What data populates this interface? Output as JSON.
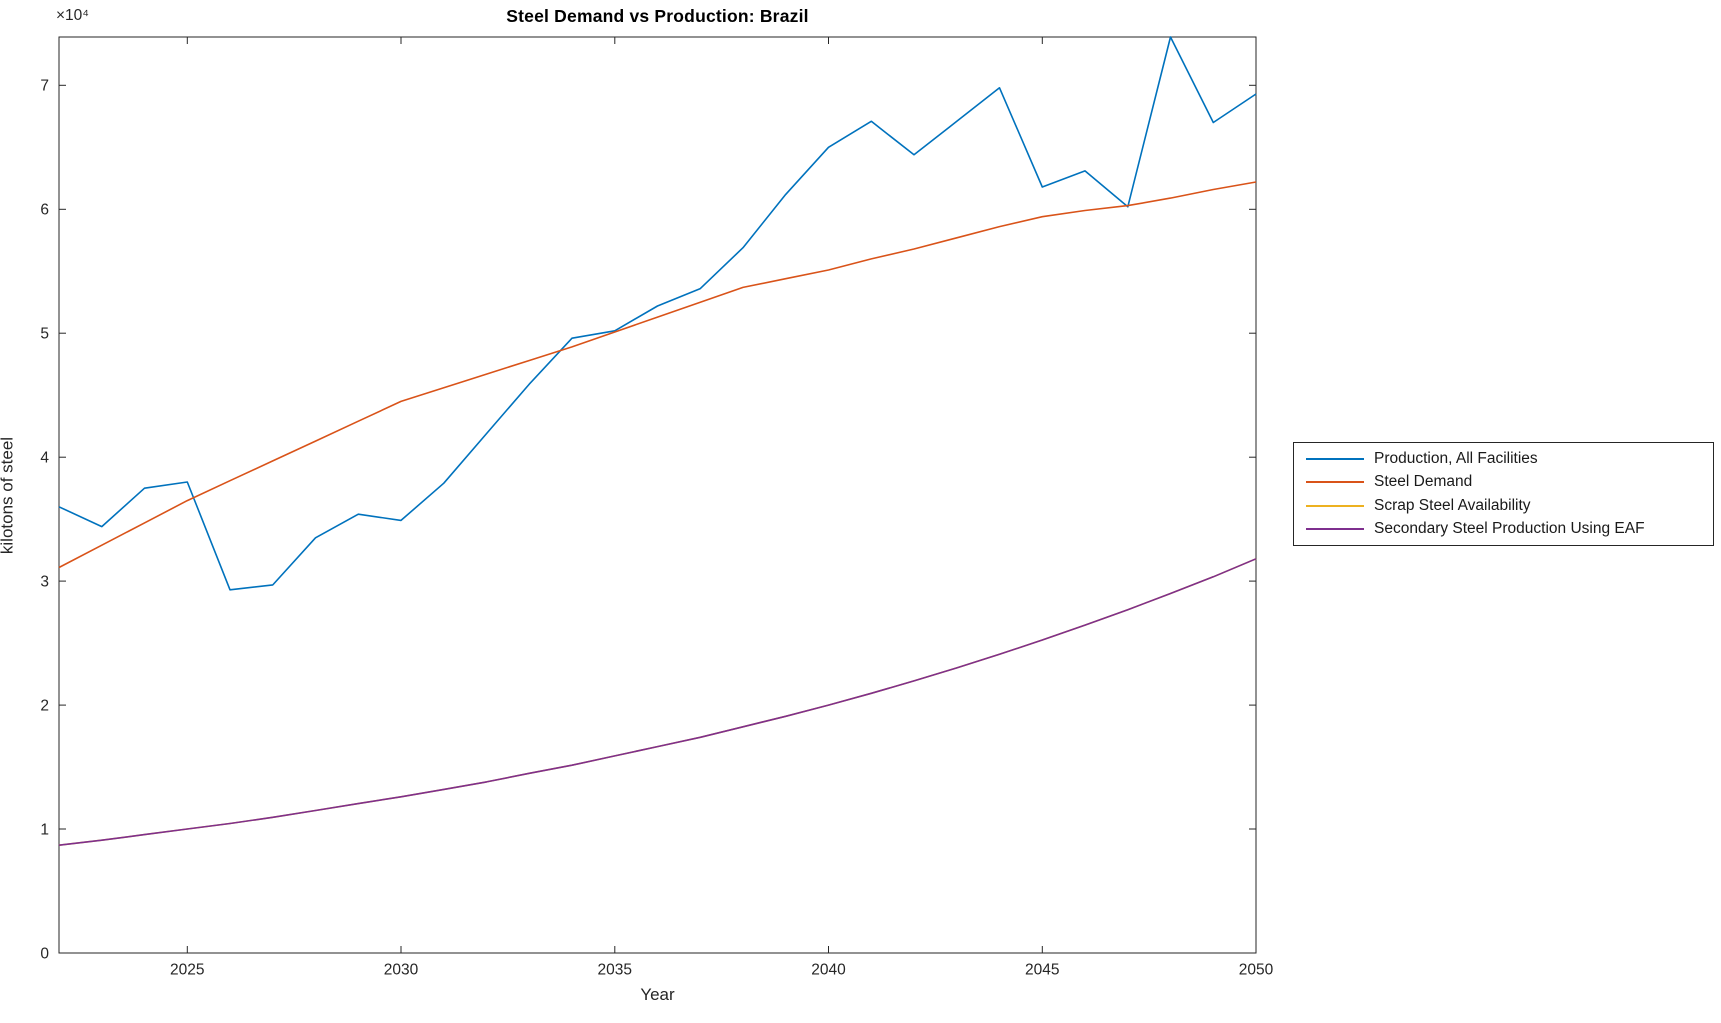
{
  "chart_data": {
    "type": "line",
    "title": "Steel Demand vs Production: Brazil",
    "xlabel": "Year",
    "ylabel": "kilotons of steel",
    "y_axis_multiplier": "×10⁴",
    "xlim": [
      2022,
      2050
    ],
    "ylim": [
      0,
      73900
    ],
    "xticks": [
      2025,
      2030,
      2035,
      2040,
      2045,
      2050
    ],
    "xtick_labels": [
      "2025",
      "2030",
      "2035",
      "2040",
      "2045",
      "2050"
    ],
    "yticks": [
      0,
      10000,
      20000,
      30000,
      40000,
      50000,
      60000,
      70000
    ],
    "ytick_labels": [
      "0",
      "1",
      "2",
      "3",
      "4",
      "5",
      "6",
      "7"
    ],
    "grid": false,
    "axis_color": "#262626",
    "background_color": "#ffffff",
    "legend_position": "right-outside",
    "x": [
      2022,
      2023,
      2024,
      2025,
      2026,
      2027,
      2028,
      2029,
      2030,
      2031,
      2032,
      2033,
      2034,
      2035,
      2036,
      2037,
      2038,
      2039,
      2040,
      2041,
      2042,
      2043,
      2044,
      2045,
      2046,
      2047,
      2048,
      2049,
      2050
    ],
    "series": [
      {
        "name": "Production, All Facilities",
        "color": "#0072BD",
        "values": [
          36000,
          34400,
          37500,
          38000,
          29300,
          29700,
          33500,
          35400,
          34900,
          37900,
          41900,
          45900,
          49600,
          50200,
          52200,
          53600,
          56900,
          61200,
          65000,
          67100,
          64400,
          67100,
          69800,
          61800,
          63100,
          60200,
          73900,
          67000,
          69300
        ]
      },
      {
        "name": "Steel Demand",
        "color": "#D95319",
        "values": [
          31100,
          32900,
          34700,
          36500,
          38100,
          39700,
          41300,
          42900,
          44500,
          45600,
          46700,
          47800,
          48900,
          50100,
          51300,
          52500,
          53700,
          54400,
          55100,
          56000,
          56800,
          57700,
          58600,
          59400,
          59900,
          60300,
          60900,
          61600,
          62200
        ]
      },
      {
        "name": "Scrap Steel Availability",
        "color": "#EDB120",
        "values": [
          8700,
          9100,
          9550,
          10000,
          10450,
          10950,
          11500,
          12050,
          12600,
          13200,
          13800,
          14500,
          15150,
          15900,
          16650,
          17400,
          18250,
          19100,
          20000,
          20950,
          21950,
          23000,
          24100,
          25250,
          26450,
          27700,
          29000,
          30350,
          31800
        ]
      },
      {
        "name": "Secondary Steel Production Using EAF",
        "color": "#7E2F8E",
        "values": [
          8700,
          9100,
          9550,
          10000,
          10450,
          10950,
          11500,
          12050,
          12600,
          13200,
          13800,
          14500,
          15150,
          15900,
          16650,
          17400,
          18250,
          19100,
          20000,
          20950,
          21950,
          23000,
          24100,
          25250,
          26450,
          27700,
          29000,
          30350,
          31800
        ]
      }
    ]
  }
}
